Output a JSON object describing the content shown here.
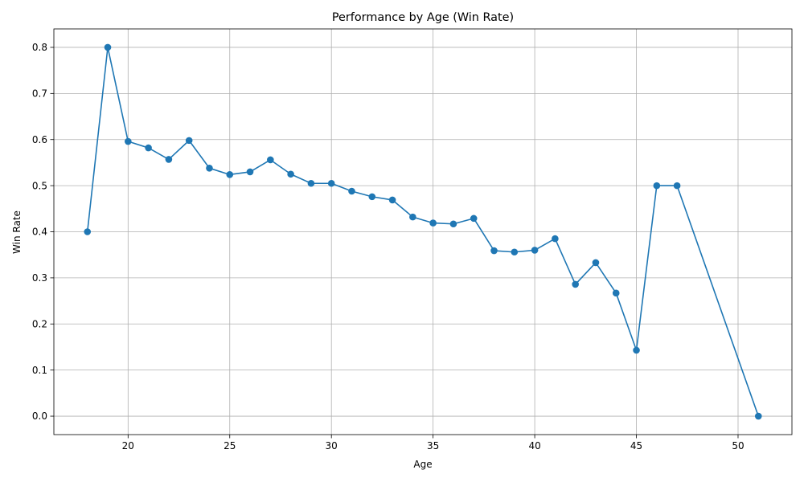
{
  "chart_data": {
    "type": "line",
    "title": "Performance by Age (Win Rate)",
    "xlabel": "Age",
    "ylabel": "Win Rate",
    "xlim": [
      16.35,
      52.65
    ],
    "ylim": [
      -0.04,
      0.84
    ],
    "xticks": [
      20,
      25,
      30,
      35,
      40,
      45,
      50
    ],
    "yticks": [
      0.0,
      0.1,
      0.2,
      0.3,
      0.4,
      0.5,
      0.6,
      0.7,
      0.8
    ],
    "xtick_labels": [
      "20",
      "25",
      "30",
      "35",
      "40",
      "45",
      "50"
    ],
    "ytick_labels": [
      "0.0",
      "0.1",
      "0.2",
      "0.3",
      "0.4",
      "0.5",
      "0.6",
      "0.7",
      "0.8"
    ],
    "grid": true,
    "series": [
      {
        "name": "Win Rate",
        "color": "#1f77b4",
        "marker": "circle",
        "x": [
          18,
          19,
          20,
          21,
          22,
          23,
          24,
          25,
          26,
          27,
          28,
          29,
          30,
          31,
          32,
          33,
          34,
          35,
          36,
          37,
          38,
          39,
          40,
          41,
          42,
          43,
          44,
          45,
          46,
          47,
          51
        ],
        "y": [
          0.4,
          0.8,
          0.596,
          0.582,
          0.557,
          0.598,
          0.538,
          0.524,
          0.53,
          0.556,
          0.525,
          0.505,
          0.505,
          0.488,
          0.476,
          0.469,
          0.432,
          0.419,
          0.417,
          0.429,
          0.359,
          0.356,
          0.36,
          0.385,
          0.286,
          0.333,
          0.267,
          0.143,
          0.5,
          0.5,
          0.0
        ]
      }
    ]
  },
  "colors": {
    "line": "#1f77b4",
    "grid": "#b0b0b0",
    "axes": "#000000"
  }
}
